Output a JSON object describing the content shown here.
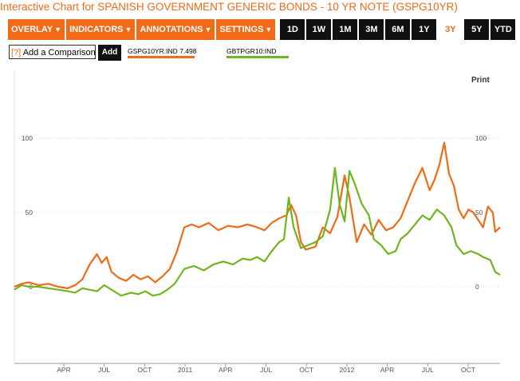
{
  "title": "Interactive Chart for SPANISH GOVERNMENT GENERIC BONDS - 10 YR NOTE (GSPG10YR)",
  "toolbar": {
    "menus": [
      "OVERLAY",
      "INDICATORS",
      "ANNOTATIONS",
      "SETTINGS"
    ],
    "ranges": [
      "1D",
      "1W",
      "1M",
      "3M",
      "6M",
      "1Y",
      "3Y",
      "5Y",
      "YTD"
    ],
    "active_range": "3Y"
  },
  "compare": {
    "help": "[?]",
    "placeholder": "Add a Comparison",
    "add_label": "Add"
  },
  "legend": [
    {
      "label": "GSPG10YR:IND",
      "value": "7.498",
      "color": "#f26a16"
    },
    {
      "label": "GBTPGR10:IND",
      "value": "",
      "color": "#6fb51e"
    }
  ],
  "print_label": "Print",
  "chart_data": {
    "type": "line",
    "y_ticks_left": [
      "100",
      "50",
      "0"
    ],
    "y_ticks_right": [
      "100",
      "50",
      "0"
    ],
    "x_ticks": [
      "APR",
      "JUL",
      "OCT",
      "2011",
      "APR",
      "JUL",
      "OCT",
      "2012",
      "APR",
      "JUL",
      "OCT"
    ],
    "ylim": [
      -55,
      115
    ],
    "xlim": [
      0,
      100
    ],
    "series": [
      {
        "name": "GSPG10YR:IND",
        "color": "#f26a16",
        "points": [
          [
            0,
            0
          ],
          [
            1.5,
            2
          ],
          [
            3,
            3
          ],
          [
            5,
            1
          ],
          [
            7,
            2
          ],
          [
            9,
            0
          ],
          [
            11,
            -1
          ],
          [
            12.5,
            1
          ],
          [
            14,
            5
          ],
          [
            15.5,
            15
          ],
          [
            17,
            22
          ],
          [
            18,
            16
          ],
          [
            19,
            20
          ],
          [
            20,
            10
          ],
          [
            21.5,
            6
          ],
          [
            23,
            4
          ],
          [
            24.5,
            8
          ],
          [
            26,
            5
          ],
          [
            27.5,
            7
          ],
          [
            29,
            3
          ],
          [
            30.5,
            7
          ],
          [
            32,
            12
          ],
          [
            33.5,
            24
          ],
          [
            35,
            40
          ],
          [
            36.5,
            42
          ],
          [
            38,
            40
          ],
          [
            40,
            43
          ],
          [
            42,
            38
          ],
          [
            44,
            41
          ],
          [
            46,
            40
          ],
          [
            48,
            42
          ],
          [
            50,
            40
          ],
          [
            51.5,
            38
          ],
          [
            53,
            43
          ],
          [
            54.5,
            46
          ],
          [
            56,
            48
          ],
          [
            57,
            55
          ],
          [
            58,
            48
          ],
          [
            59,
            30
          ],
          [
            60,
            25
          ],
          [
            62,
            27
          ],
          [
            63.5,
            40
          ],
          [
            65,
            36
          ],
          [
            66.5,
            47
          ],
          [
            68,
            75
          ],
          [
            69,
            60
          ],
          [
            70.5,
            30
          ],
          [
            72,
            42
          ],
          [
            73.5,
            35
          ],
          [
            75,
            45
          ],
          [
            76.5,
            38
          ],
          [
            78,
            40
          ],
          [
            79.5,
            46
          ],
          [
            81,
            58
          ],
          [
            82.5,
            70
          ],
          [
            84,
            80
          ],
          [
            85.5,
            65
          ],
          [
            86.5,
            72
          ],
          [
            87.5,
            82
          ],
          [
            88.5,
            97
          ],
          [
            89.5,
            76
          ],
          [
            90.5,
            68
          ],
          [
            91.5,
            52
          ],
          [
            92.5,
            46
          ],
          [
            93.5,
            52
          ],
          [
            94.5,
            50
          ],
          [
            95.5,
            45
          ],
          [
            96.5,
            40
          ],
          [
            97.5,
            54
          ],
          [
            98.5,
            50
          ],
          [
            99,
            37
          ],
          [
            100,
            40
          ]
        ]
      },
      {
        "name": "GBTPGR10:IND",
        "color": "#6fb51e",
        "points": [
          [
            0,
            -2
          ],
          [
            1.5,
            1
          ],
          [
            3,
            0
          ],
          [
            5,
            0
          ],
          [
            7,
            -1
          ],
          [
            9,
            -2
          ],
          [
            11,
            -3
          ],
          [
            12.5,
            -4
          ],
          [
            14,
            -1
          ],
          [
            15.5,
            -2
          ],
          [
            17,
            -3
          ],
          [
            18.5,
            1
          ],
          [
            20,
            -2
          ],
          [
            22,
            -6
          ],
          [
            24,
            -4
          ],
          [
            25.5,
            -5
          ],
          [
            27,
            -3
          ],
          [
            28.5,
            -6
          ],
          [
            30,
            -5
          ],
          [
            31.5,
            -2
          ],
          [
            33,
            2
          ],
          [
            35,
            12
          ],
          [
            37,
            14
          ],
          [
            39,
            11
          ],
          [
            41,
            15
          ],
          [
            43,
            17
          ],
          [
            45,
            15
          ],
          [
            47,
            19
          ],
          [
            48.5,
            18
          ],
          [
            50,
            20
          ],
          [
            51.5,
            17
          ],
          [
            53,
            24
          ],
          [
            54.5,
            30
          ],
          [
            55.5,
            32
          ],
          [
            56.5,
            60
          ],
          [
            57.5,
            40
          ],
          [
            59,
            26
          ],
          [
            60.5,
            28
          ],
          [
            62,
            30
          ],
          [
            63.5,
            34
          ],
          [
            65,
            52
          ],
          [
            66,
            80
          ],
          [
            67,
            55
          ],
          [
            68,
            44
          ],
          [
            69,
            78
          ],
          [
            70,
            70
          ],
          [
            71.5,
            56
          ],
          [
            73,
            48
          ],
          [
            74,
            32
          ],
          [
            75.5,
            28
          ],
          [
            77,
            22
          ],
          [
            78.5,
            24
          ],
          [
            79.5,
            32
          ],
          [
            81,
            36
          ],
          [
            82.5,
            42
          ],
          [
            84,
            48
          ],
          [
            85.5,
            45
          ],
          [
            87,
            52
          ],
          [
            88.5,
            48
          ],
          [
            90,
            40
          ],
          [
            91,
            28
          ],
          [
            92.5,
            22
          ],
          [
            94,
            24
          ],
          [
            95.5,
            22
          ],
          [
            96.5,
            20
          ],
          [
            98,
            18
          ],
          [
            99,
            10
          ],
          [
            100,
            8
          ]
        ]
      }
    ]
  }
}
